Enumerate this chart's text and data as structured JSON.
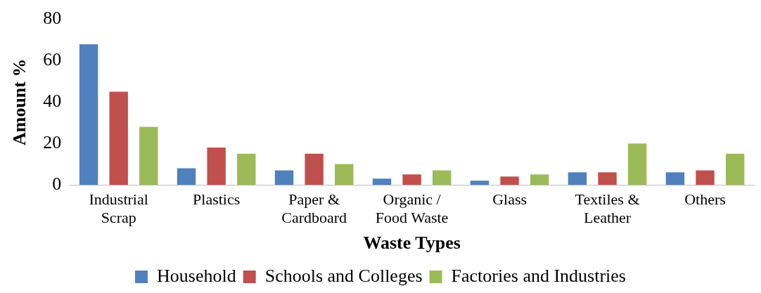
{
  "chart_data": {
    "type": "bar",
    "xlabel": "Waste Types",
    "ylabel": "Amount %",
    "categories": [
      "Industrial Scrap",
      "Plastics",
      "Paper & Cardboard",
      "Organic / Food Waste",
      "Glass",
      "Textiles & Leather",
      "Others"
    ],
    "series": [
      {
        "name": "Household",
        "color": "#4f81bd",
        "values": [
          68,
          8,
          7,
          3,
          2,
          6,
          6
        ]
      },
      {
        "name": "Schools and Colleges",
        "color": "#c0504d",
        "values": [
          45,
          18,
          15,
          5,
          4,
          6,
          7
        ]
      },
      {
        "name": "Factories and Industries",
        "color": "#9bbb59",
        "values": [
          28,
          15,
          10,
          7,
          5,
          20,
          15
        ]
      }
    ],
    "ylim": [
      0,
      80
    ],
    "yticks": [
      0,
      20,
      40,
      60,
      80
    ],
    "grid": false,
    "legend": "bottom"
  }
}
